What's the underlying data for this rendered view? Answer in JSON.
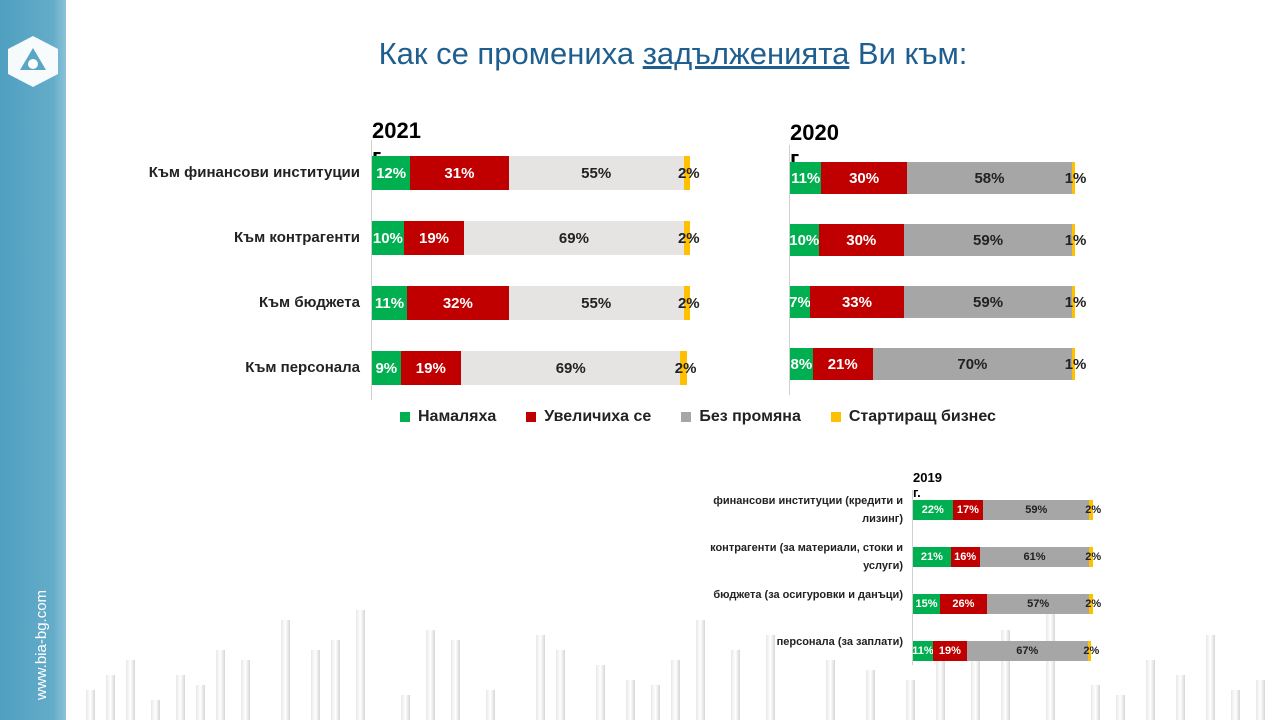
{
  "sidebar": {
    "url": "www.bia-bg.com"
  },
  "title": {
    "before": "Как се промениха ",
    "underlined": "задълженията",
    "after": " Ви към:"
  },
  "colors": {
    "decreased": "#00b050",
    "increased": "#c00000",
    "no_change_2021": "#e6e3e3",
    "no_change": "#a6a6a6",
    "startup": "#ffc000"
  },
  "legend": [
    {
      "label": "Намаляха",
      "key": "decreased"
    },
    {
      "label": "Увеличиха се",
      "key": "increased"
    },
    {
      "label": "Без промяна",
      "key": "no_change"
    },
    {
      "label": "Стартиращ бизнес",
      "key": "startup"
    }
  ],
  "chart_data": [
    {
      "type": "bar",
      "orientation": "horizontal",
      "stacked": true,
      "title": "2021 г.",
      "categories": [
        "Към финансови институции",
        "Към контрагенти",
        "Към бюджета",
        "Към персонала"
      ],
      "series": [
        {
          "name": "Намаляха",
          "values": [
            12,
            10,
            11,
            9
          ]
        },
        {
          "name": "Увеличиха се",
          "values": [
            31,
            19,
            32,
            19
          ]
        },
        {
          "name": "Без промяна",
          "values": [
            55,
            69,
            55,
            69
          ]
        },
        {
          "name": "Стартиращ бизнес",
          "values": [
            2,
            2,
            2,
            2
          ]
        }
      ],
      "unit": "%",
      "xlim": [
        0,
        100
      ]
    },
    {
      "type": "bar",
      "orientation": "horizontal",
      "stacked": true,
      "title": "2020 г.",
      "categories": [
        "Към финансови институции",
        "Към контрагенти",
        "Към бюджета",
        "Към персонала"
      ],
      "series": [
        {
          "name": "Намаляха",
          "values": [
            11,
            10,
            7,
            8
          ]
        },
        {
          "name": "Увеличиха се",
          "values": [
            30,
            30,
            33,
            21
          ]
        },
        {
          "name": "Без промяна",
          "values": [
            58,
            59,
            59,
            70
          ]
        },
        {
          "name": "Стартиращ бизнес",
          "values": [
            1,
            1,
            1,
            1
          ]
        }
      ],
      "unit": "%",
      "xlim": [
        0,
        100
      ]
    },
    {
      "type": "bar",
      "orientation": "horizontal",
      "stacked": true,
      "title": "2019 г.",
      "categories": [
        "финансови институции (кредити и лизинг)",
        "контрагенти (за материали, стоки и услуги)",
        "бюджета (за осигуровки и данъци)",
        "персонала (за заплати)"
      ],
      "series": [
        {
          "name": "Намаляха",
          "values": [
            22,
            21,
            15,
            11
          ]
        },
        {
          "name": "Увеличиха се",
          "values": [
            17,
            16,
            26,
            19
          ]
        },
        {
          "name": "Без промяна",
          "values": [
            59,
            61,
            57,
            67
          ]
        },
        {
          "name": "Стартиращ бизнес",
          "values": [
            2,
            2,
            2,
            2
          ]
        }
      ],
      "unit": "%",
      "xlim": [
        0,
        100
      ]
    }
  ]
}
